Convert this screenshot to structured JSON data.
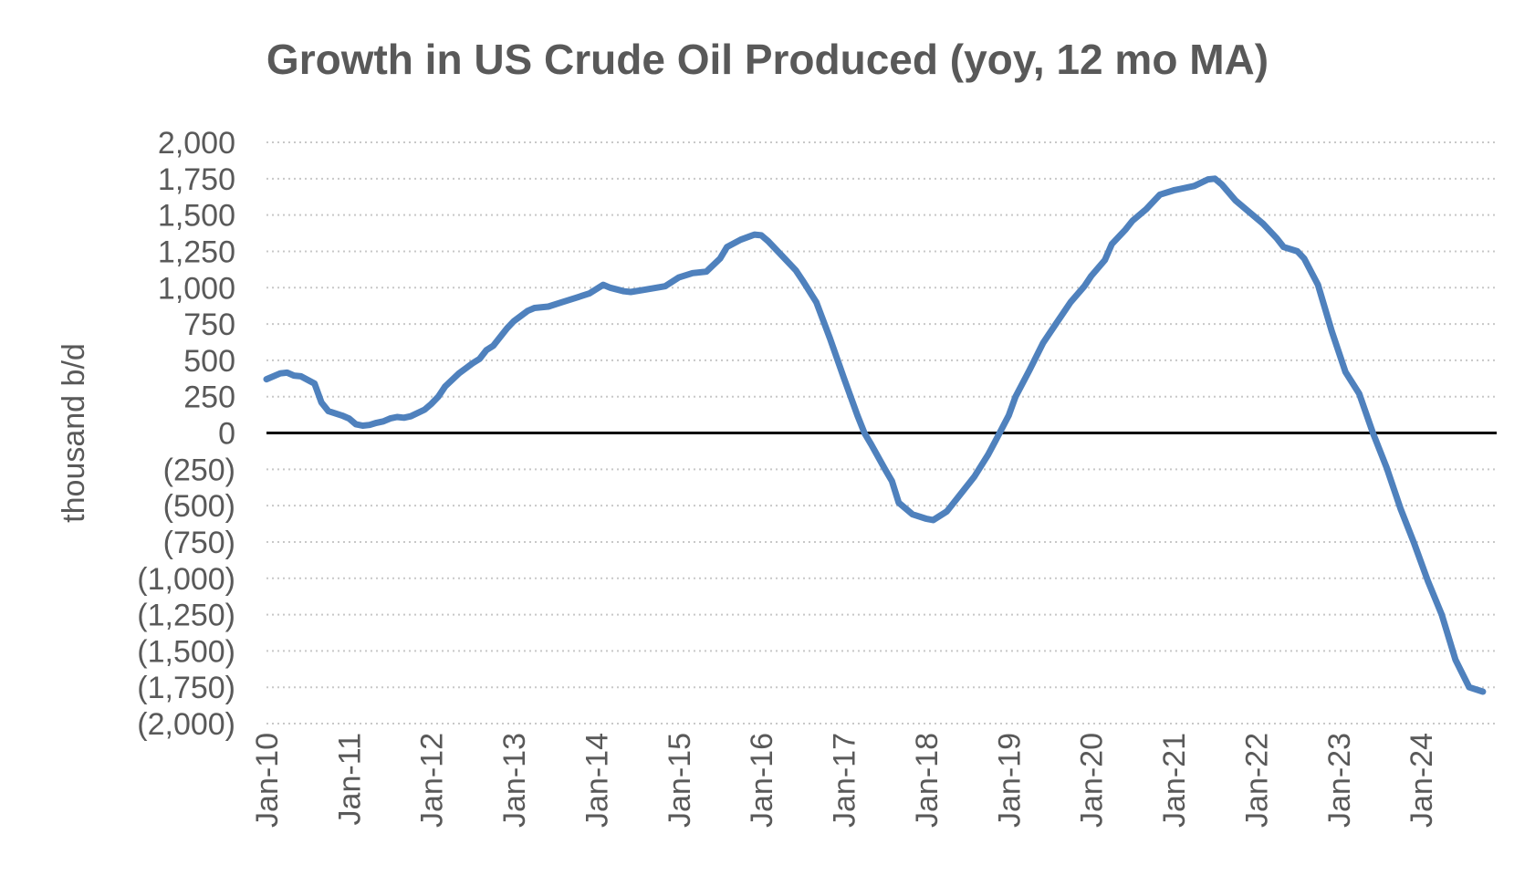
{
  "chart_data": {
    "type": "line",
    "title": "Growth in US Crude Oil Produced (yoy, 12 mo MA)",
    "xlabel": "",
    "ylabel": "thousand b/d",
    "ylim": [
      -2000,
      2000
    ],
    "xlim": [
      "2010-01",
      "2024-12"
    ],
    "grid": "horizontal dotted",
    "legend": "none",
    "zero_line": true,
    "line_color": "#4F81BD",
    "ytick_values": [
      2000,
      1750,
      1500,
      1250,
      1000,
      750,
      500,
      250,
      0,
      -250,
      -500,
      -750,
      -1000,
      -1250,
      -1500,
      -1750,
      -2000
    ],
    "ytick_labels": [
      "2,000",
      "1,750",
      "1,500",
      "1,250",
      "1,000",
      "750",
      "500",
      "250",
      "0",
      "(250)",
      "(500)",
      "(750)",
      "(1,000)",
      "(1,250)",
      "(1,500)",
      "(1,750)",
      "(2,000)"
    ],
    "xtick_dates": [
      "2010-01",
      "2011-01",
      "2012-01",
      "2013-01",
      "2014-01",
      "2015-01",
      "2016-01",
      "2017-01",
      "2018-01",
      "2019-01",
      "2020-01",
      "2021-01",
      "2022-01",
      "2023-01",
      "2024-01"
    ],
    "xtick_labels": [
      "Jan-10",
      "Jan-11",
      "Jan-12",
      "Jan-13",
      "Jan-14",
      "Jan-15",
      "Jan-16",
      "Jan-17",
      "Jan-18",
      "Jan-19",
      "Jan-20",
      "Jan-21",
      "Jan-22",
      "Jan-23",
      "Jan-24"
    ],
    "series": [
      {
        "points": [
          [
            "2010-01",
            370
          ],
          [
            "2010-03",
            410
          ],
          [
            "2010-04",
            415
          ],
          [
            "2010-05",
            395
          ],
          [
            "2010-06",
            390
          ],
          [
            "2010-08",
            340
          ],
          [
            "2010-09",
            210
          ],
          [
            "2010-10",
            150
          ],
          [
            "2010-12",
            120
          ],
          [
            "2011-01",
            100
          ],
          [
            "2011-02",
            60
          ],
          [
            "2011-03",
            50
          ],
          [
            "2011-04",
            55
          ],
          [
            "2011-05",
            70
          ],
          [
            "2011-06",
            80
          ],
          [
            "2011-07",
            100
          ],
          [
            "2011-08",
            110
          ],
          [
            "2011-09",
            105
          ],
          [
            "2011-10",
            115
          ],
          [
            "2011-12",
            160
          ],
          [
            "2012-01",
            200
          ],
          [
            "2012-02",
            250
          ],
          [
            "2012-03",
            320
          ],
          [
            "2012-05",
            410
          ],
          [
            "2012-07",
            480
          ],
          [
            "2012-08",
            510
          ],
          [
            "2012-09",
            570
          ],
          [
            "2012-10",
            600
          ],
          [
            "2012-12",
            720
          ],
          [
            "2013-01",
            770
          ],
          [
            "2013-03",
            840
          ],
          [
            "2013-04",
            860
          ],
          [
            "2013-06",
            870
          ],
          [
            "2013-08",
            900
          ],
          [
            "2013-10",
            930
          ],
          [
            "2013-12",
            960
          ],
          [
            "2014-01",
            990
          ],
          [
            "2014-02",
            1020
          ],
          [
            "2014-03",
            1000
          ],
          [
            "2014-05",
            975
          ],
          [
            "2014-06",
            970
          ],
          [
            "2014-08",
            985
          ],
          [
            "2014-11",
            1010
          ],
          [
            "2015-01",
            1070
          ],
          [
            "2015-03",
            1100
          ],
          [
            "2015-05",
            1110
          ],
          [
            "2015-07",
            1200
          ],
          [
            "2015-08",
            1280
          ],
          [
            "2015-10",
            1330
          ],
          [
            "2015-12",
            1365
          ],
          [
            "2016-01",
            1360
          ],
          [
            "2016-02",
            1320
          ],
          [
            "2016-04",
            1220
          ],
          [
            "2016-06",
            1120
          ],
          [
            "2016-07",
            1050
          ],
          [
            "2016-09",
            900
          ],
          [
            "2016-11",
            650
          ],
          [
            "2017-01",
            380
          ],
          [
            "2017-03",
            120
          ],
          [
            "2017-04",
            0
          ],
          [
            "2017-05",
            -80
          ],
          [
            "2017-07",
            -250
          ],
          [
            "2017-08",
            -330
          ],
          [
            "2017-09",
            -480
          ],
          [
            "2017-11",
            -560
          ],
          [
            "2018-01",
            -590
          ],
          [
            "2018-02",
            -600
          ],
          [
            "2018-04",
            -540
          ],
          [
            "2018-06",
            -420
          ],
          [
            "2018-08",
            -300
          ],
          [
            "2018-10",
            -150
          ],
          [
            "2018-11",
            -60
          ],
          [
            "2019-01",
            120
          ],
          [
            "2019-02",
            250
          ],
          [
            "2019-04",
            430
          ],
          [
            "2019-06",
            620
          ],
          [
            "2019-08",
            760
          ],
          [
            "2019-10",
            900
          ],
          [
            "2019-12",
            1010
          ],
          [
            "2020-01",
            1080
          ],
          [
            "2020-03",
            1190
          ],
          [
            "2020-04",
            1300
          ],
          [
            "2020-06",
            1400
          ],
          [
            "2020-07",
            1460
          ],
          [
            "2020-09",
            1540
          ],
          [
            "2020-11",
            1640
          ],
          [
            "2021-01",
            1670
          ],
          [
            "2021-02",
            1680
          ],
          [
            "2021-04",
            1700
          ],
          [
            "2021-06",
            1745
          ],
          [
            "2021-07",
            1750
          ],
          [
            "2021-08",
            1710
          ],
          [
            "2021-10",
            1600
          ],
          [
            "2021-12",
            1520
          ],
          [
            "2022-02",
            1440
          ],
          [
            "2022-04",
            1340
          ],
          [
            "2022-05",
            1280
          ],
          [
            "2022-07",
            1250
          ],
          [
            "2022-08",
            1200
          ],
          [
            "2022-10",
            1020
          ],
          [
            "2022-12",
            700
          ],
          [
            "2023-02",
            420
          ],
          [
            "2023-04",
            270
          ],
          [
            "2023-06",
            0
          ],
          [
            "2023-08",
            -240
          ],
          [
            "2023-10",
            -520
          ],
          [
            "2023-12",
            -760
          ],
          [
            "2024-02",
            -1020
          ],
          [
            "2024-04",
            -1250
          ],
          [
            "2024-06",
            -1560
          ],
          [
            "2024-08",
            -1750
          ],
          [
            "2024-10",
            -1780
          ]
        ]
      }
    ]
  }
}
